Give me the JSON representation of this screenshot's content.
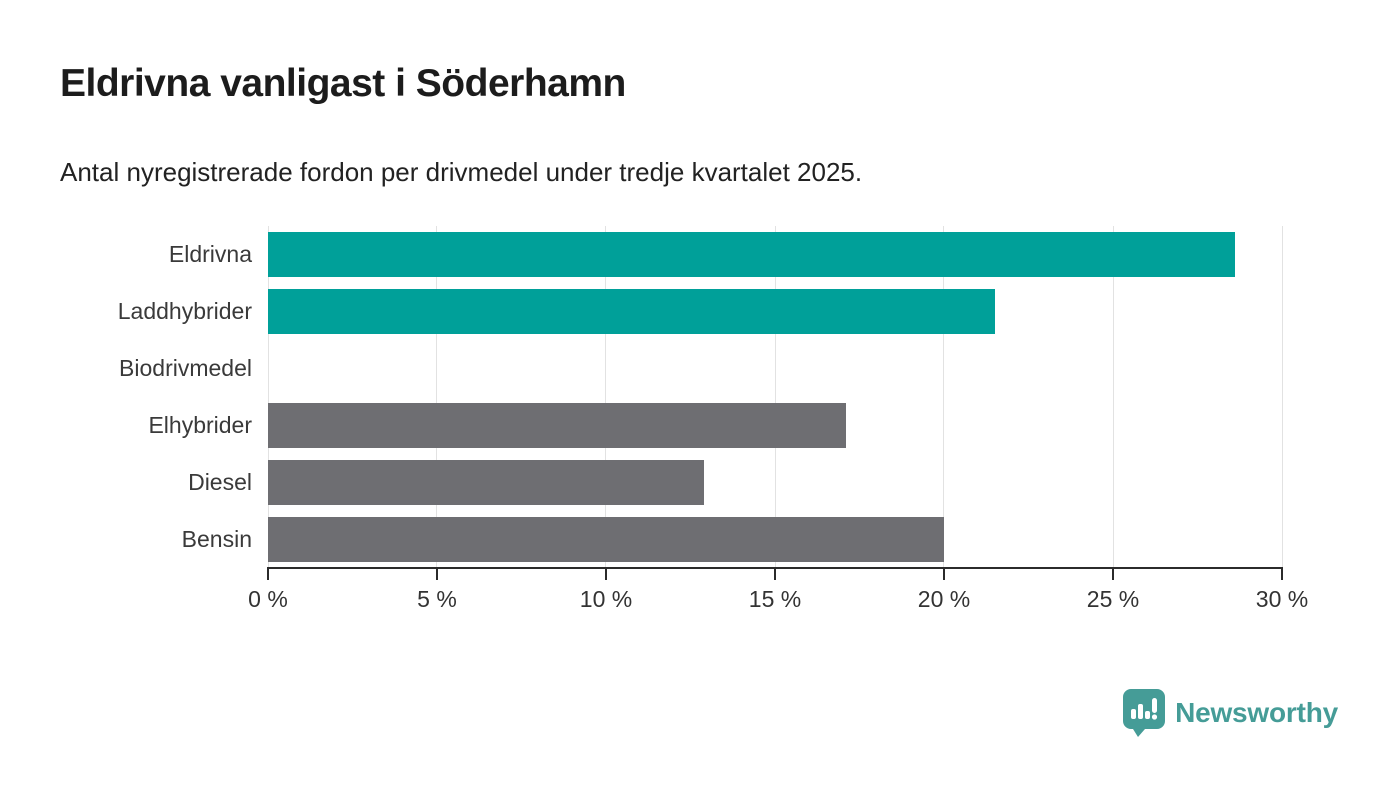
{
  "page": {
    "title": "Eldrivna vanligast i Söderhamn",
    "subtitle": "Antal nyregistrerade fordon per drivmedel under tredje kvartalet 2025."
  },
  "chart_data": {
    "type": "bar",
    "orientation": "horizontal",
    "title": "Eldrivna vanligast i Söderhamn",
    "subtitle": "Antal nyregistrerade fordon per drivmedel under tredje kvartalet 2025.",
    "categories": [
      "Eldrivna",
      "Laddhybrider",
      "Biodrivmedel",
      "Elhybrider",
      "Diesel",
      "Bensin"
    ],
    "values": [
      28.6,
      21.5,
      0,
      17.1,
      12.9,
      20
    ],
    "unit": "%",
    "xlim": [
      0,
      30
    ],
    "x_ticks": [
      0,
      5,
      10,
      15,
      20,
      25,
      30
    ],
    "x_tick_labels": [
      "0 %",
      "5 %",
      "10 %",
      "15 %",
      "20 %",
      "25 %",
      "30 %"
    ],
    "bar_colors": [
      "#00A099",
      "#00A099",
      "#6E6E72",
      "#6E6E72",
      "#6E6E72",
      "#6E6E72"
    ],
    "grid": true,
    "legend": "none",
    "colors": {
      "highlight": "#00A099",
      "default": "#6E6E72",
      "gridline": "#e2e2e2",
      "axis": "#2b2b2b"
    }
  },
  "branding": {
    "logo_text": "Newsworthy",
    "logo_color": "#459C97",
    "logo_icon": "speech-bubble-bar-chart-icon"
  }
}
